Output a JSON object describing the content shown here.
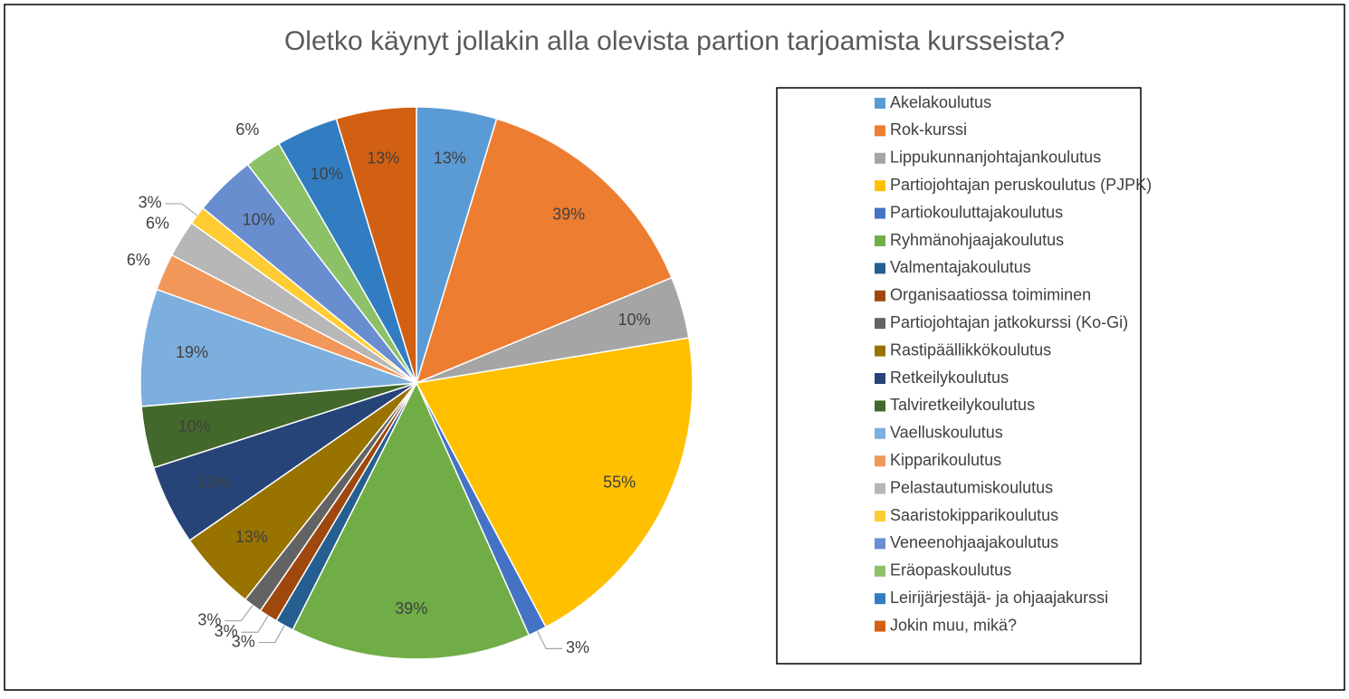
{
  "chart_data": {
    "type": "pie",
    "title": "Oletko käynyt jollakin alla olevista partion tarjoamista kursseista?",
    "categories": [
      "Akelakoulutus",
      "Rok-kurssi",
      "Lippukunnanjohtajankoulutus",
      "Partiojohtajan peruskoulutus (PJPK)",
      "Partiokouluttajakoulutus",
      "Ryhmänohjaajakoulutus",
      "Valmentajakoulutus",
      "Organisaatiossa toimiminen",
      "Partiojohtajan jatkokurssi (Ko-Gi)",
      "Rastipäällikkökoulutus",
      "Retkeilykoulutus",
      "Talviretkeilykoulutus",
      "Vaelluskoulutus",
      "Kipparikoulutus",
      "Pelastautumiskoulutus",
      "Saaristokipparikoulutus",
      "Veneenohjaajakoulutus",
      "Eräopaskoulutus",
      "Leirijärjestäjä- ja ohjaajakurssi",
      "Jokin muu, mikä?"
    ],
    "values": [
      13,
      39,
      10,
      55,
      3,
      39,
      3,
      3,
      3,
      13,
      13,
      10,
      19,
      6,
      6,
      3,
      10,
      6,
      10,
      13
    ],
    "value_labels": [
      "13%",
      "39%",
      "10%",
      "55%",
      "3%",
      "39%",
      "3%",
      "3%",
      "3%",
      "13%",
      "13%",
      "10%",
      "19%",
      "6%",
      "6%",
      "3%",
      "10%",
      "6%",
      "10%",
      "13%"
    ],
    "colors": [
      "#5b9bd5",
      "#ed7d31",
      "#a5a5a5",
      "#ffc000",
      "#4472c4",
      "#70ad47",
      "#255e91",
      "#9e480e",
      "#636363",
      "#997300",
      "#264478",
      "#43682b",
      "#7cafdd",
      "#f1975a",
      "#b7b7b7",
      "#ffcd33",
      "#698ed0",
      "#8cc168",
      "#327dc2",
      "#d26012"
    ],
    "legend": "right"
  }
}
